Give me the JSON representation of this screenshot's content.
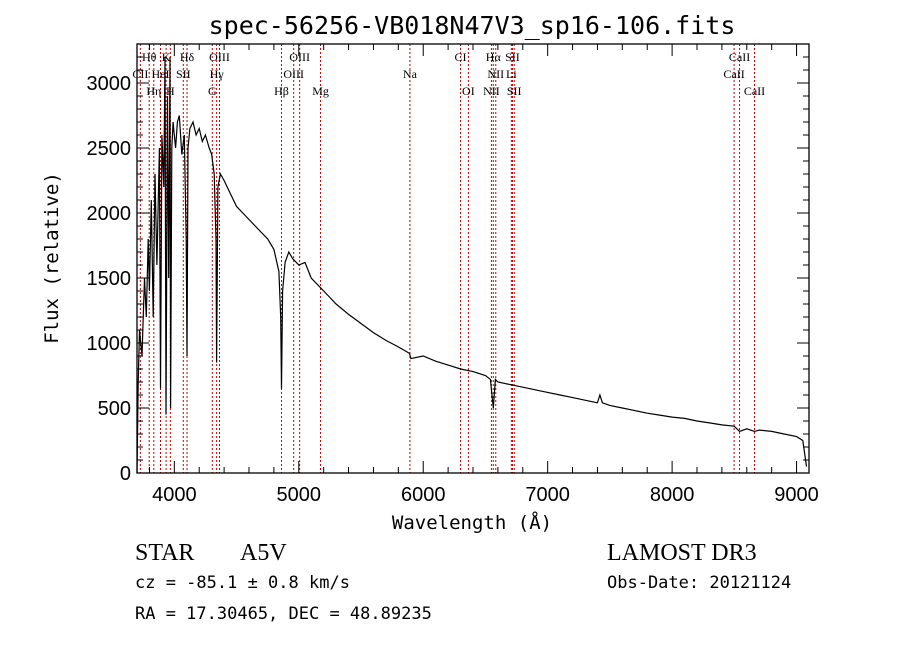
{
  "chart_data": {
    "type": "line",
    "title": "spec-56256-VB018N47V3_sp16-106.fits",
    "xlabel": "Wavelength (Å)",
    "ylabel": "Flux (relative)",
    "xlim": [
      3700,
      9100
    ],
    "ylim": [
      0,
      3300
    ],
    "xticks": [
      4000,
      5000,
      6000,
      7000,
      8000,
      9000
    ],
    "yticks": [
      0,
      500,
      1000,
      1500,
      2000,
      2500,
      3000
    ],
    "series": [
      {
        "name": "flux",
        "x": [
          3700,
          3710,
          3720,
          3740,
          3760,
          3775,
          3790,
          3800,
          3815,
          3830,
          3845,
          3860,
          3880,
          3889,
          3900,
          3915,
          3925,
          3933,
          3945,
          3955,
          3965,
          3970,
          3980,
          3990,
          4000,
          4010,
          4025,
          4040,
          4060,
          4080,
          4095,
          4102,
          4110,
          4125,
          4150,
          4175,
          4200,
          4225,
          4250,
          4280,
          4300,
          4320,
          4335,
          4340,
          4350,
          4370,
          4400,
          4450,
          4500,
          4550,
          4600,
          4650,
          4700,
          4750,
          4800,
          4840,
          4855,
          4861,
          4870,
          4890,
          4920,
          4950,
          5000,
          5050,
          5100,
          5150,
          5200,
          5250,
          5300,
          5400,
          5500,
          5600,
          5700,
          5800,
          5890,
          5900,
          6000,
          6100,
          6200,
          6300,
          6400,
          6500,
          6540,
          6563,
          6580,
          6600,
          6700,
          6800,
          6900,
          7000,
          7100,
          7200,
          7300,
          7400,
          7420,
          7440,
          7500,
          7600,
          7700,
          7800,
          7900,
          8000,
          8100,
          8200,
          8300,
          8400,
          8498,
          8542,
          8600,
          8662,
          8700,
          8800,
          8900,
          9000,
          9050,
          9080
        ],
        "y": [
          0,
          700,
          1100,
          900,
          1500,
          1200,
          1800,
          1400,
          2100,
          1200,
          2300,
          1600,
          2500,
          650,
          2600,
          2200,
          3200,
          450,
          2900,
          1500,
          3200,
          500,
          2500,
          2700,
          2600,
          2500,
          2700,
          2750,
          2450,
          2600,
          1800,
          900,
          2500,
          2650,
          2700,
          2600,
          2650,
          2550,
          2600,
          2500,
          2450,
          2300,
          1800,
          850,
          2200,
          2300,
          2250,
          2150,
          2050,
          2000,
          1950,
          1900,
          1850,
          1800,
          1720,
          1550,
          1200,
          650,
          1400,
          1620,
          1700,
          1650,
          1600,
          1620,
          1500,
          1450,
          1400,
          1350,
          1300,
          1220,
          1150,
          1080,
          1020,
          970,
          920,
          880,
          900,
          860,
          830,
          800,
          780,
          750,
          720,
          500,
          720,
          700,
          680,
          660,
          640,
          620,
          600,
          580,
          560,
          540,
          600,
          540,
          520,
          500,
          480,
          460,
          445,
          430,
          420,
          400,
          385,
          370,
          360,
          320,
          340,
          320,
          330,
          320,
          300,
          280,
          250,
          50
        ]
      }
    ],
    "annotation_lines": [
      {
        "label": "Hθ",
        "x": 3798,
        "row": 0
      },
      {
        "label": "K",
        "x": 3934,
        "row": 0
      },
      {
        "label": "Hδ",
        "x": 4102,
        "row": 0
      },
      {
        "label": "OIII",
        "x": 4363,
        "row": 0
      },
      {
        "label": "OIII",
        "x": 5007,
        "row": 0
      },
      {
        "label": "CI",
        "x": 6300,
        "row": 0
      },
      {
        "label": "Hα",
        "x": 6563,
        "row": 0
      },
      {
        "label": "SII",
        "x": 6717,
        "row": 0
      },
      {
        "label": "CaII",
        "x": 8542,
        "row": 0
      },
      {
        "label": "CII",
        "x": 3727,
        "row": 1
      },
      {
        "label": "HeI",
        "x": 3889,
        "row": 1
      },
      {
        "label": "SII",
        "x": 4072,
        "row": 1
      },
      {
        "label": "Hγ",
        "x": 4340,
        "row": 1
      },
      {
        "label": "OIII",
        "x": 4959,
        "row": 1
      },
      {
        "label": "Na",
        "x": 5893,
        "row": 1
      },
      {
        "label": "NII",
        "x": 6583,
        "row": 1
      },
      {
        "label": "Li",
        "x": 6708,
        "row": 1
      },
      {
        "label": "CaII",
        "x": 8498,
        "row": 1
      },
      {
        "label": "Hη",
        "x": 3835,
        "row": 2
      },
      {
        "label": "H",
        "x": 3968,
        "row": 2
      },
      {
        "label": "G",
        "x": 4305,
        "row": 2
      },
      {
        "label": "Hβ",
        "x": 4861,
        "row": 2
      },
      {
        "label": "Mg",
        "x": 5175,
        "row": 2
      },
      {
        "label": "OI",
        "x": 6363,
        "row": 2
      },
      {
        "label": "NII",
        "x": 6548,
        "row": 2
      },
      {
        "label": "SII",
        "x": 6731,
        "row": 2
      },
      {
        "label": "CaII",
        "x": 8662,
        "row": 2
      }
    ],
    "colors": {
      "spectrum": "#000000",
      "line_markers": "#c00000"
    }
  },
  "info": {
    "object_class": "STAR",
    "subclass": "A5V",
    "survey": "LAMOST DR3",
    "redshift": "cz = -85.1 ± 0.8 km/s",
    "obs_date": "Obs-Date: 20121124",
    "coords": "RA =  17.30465, DEC =  48.89235"
  }
}
